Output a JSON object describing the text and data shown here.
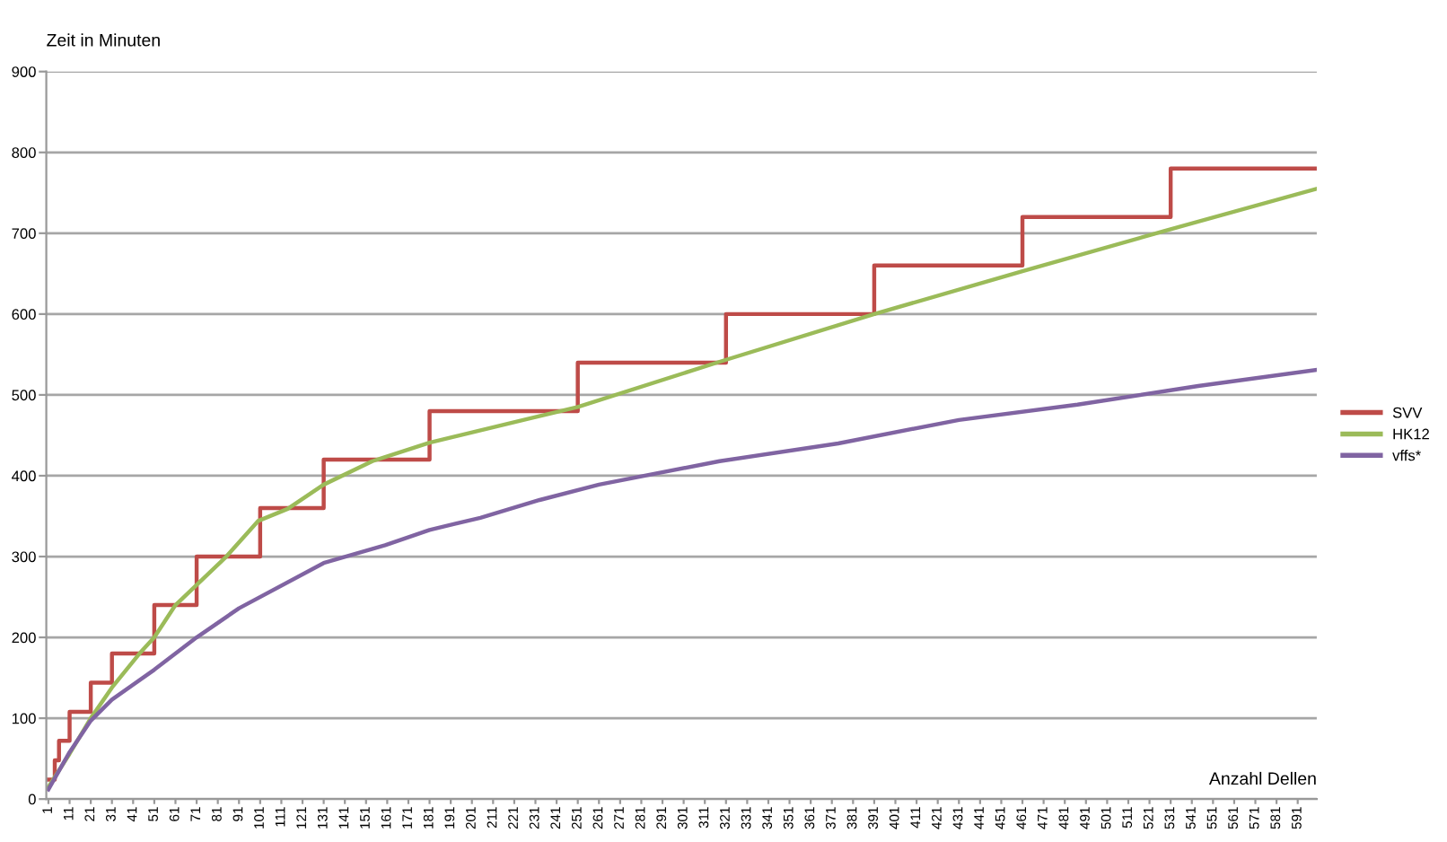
{
  "chart_data": {
    "type": "line",
    "ylabel": "Zeit in Minuten",
    "xlabel": "Anzahl Dellen",
    "xlim": [
      0,
      600
    ],
    "xticks": [
      1,
      11,
      21,
      31,
      41,
      51,
      61,
      71,
      81,
      91,
      101,
      111,
      121,
      131,
      141,
      151,
      161,
      171,
      181,
      191,
      201,
      211,
      221,
      231,
      241,
      251,
      261,
      271,
      281,
      291,
      301,
      311,
      321,
      331,
      341,
      351,
      361,
      371,
      381,
      391,
      401,
      411,
      421,
      431,
      441,
      451,
      461,
      471,
      481,
      491,
      501,
      511,
      521,
      531,
      541,
      551,
      561,
      571,
      581,
      591
    ],
    "ylim": [
      0,
      900
    ],
    "yticks": [
      0,
      100,
      200,
      300,
      400,
      500,
      600,
      700,
      800,
      900
    ],
    "grid": "y",
    "legend": "right",
    "marker": "none",
    "line_style": "solid",
    "series": [
      {
        "name": "SVV",
        "type": "step",
        "color": "#be4b48",
        "x": [
          1,
          4,
          6,
          11,
          21,
          31,
          51,
          71,
          101,
          131,
          181,
          251,
          321,
          391,
          461,
          531,
          600
        ],
        "values": [
          24,
          48,
          72,
          108,
          144,
          180,
          240,
          300,
          360,
          420,
          480,
          540,
          600,
          660,
          720,
          780,
          780
        ]
      },
      {
        "name": "HK12",
        "color": "#9bbb59",
        "x": [
          1,
          11,
          21,
          31,
          44,
          51,
          61,
          85,
          100,
          114,
          131,
          154,
          181,
          227,
          251,
          318,
          391,
          461,
          531,
          600
        ],
        "values": [
          15,
          56,
          100,
          138,
          180,
          200,
          240,
          300,
          344,
          359,
          389,
          418,
          441,
          470,
          485,
          541,
          600,
          653,
          705,
          755
        ]
      },
      {
        "name": "vffs*",
        "color": "#8064a2",
        "x": [
          1,
          11,
          21,
          31,
          51,
          71,
          91,
          131,
          160,
          181,
          205,
          233,
          261,
          318,
          374,
          431,
          487,
          544,
          600
        ],
        "values": [
          12,
          58,
          97,
          123,
          160,
          200,
          236,
          292,
          314,
          333,
          348,
          370,
          389,
          418,
          440,
          469,
          488,
          511,
          531
        ]
      }
    ]
  }
}
